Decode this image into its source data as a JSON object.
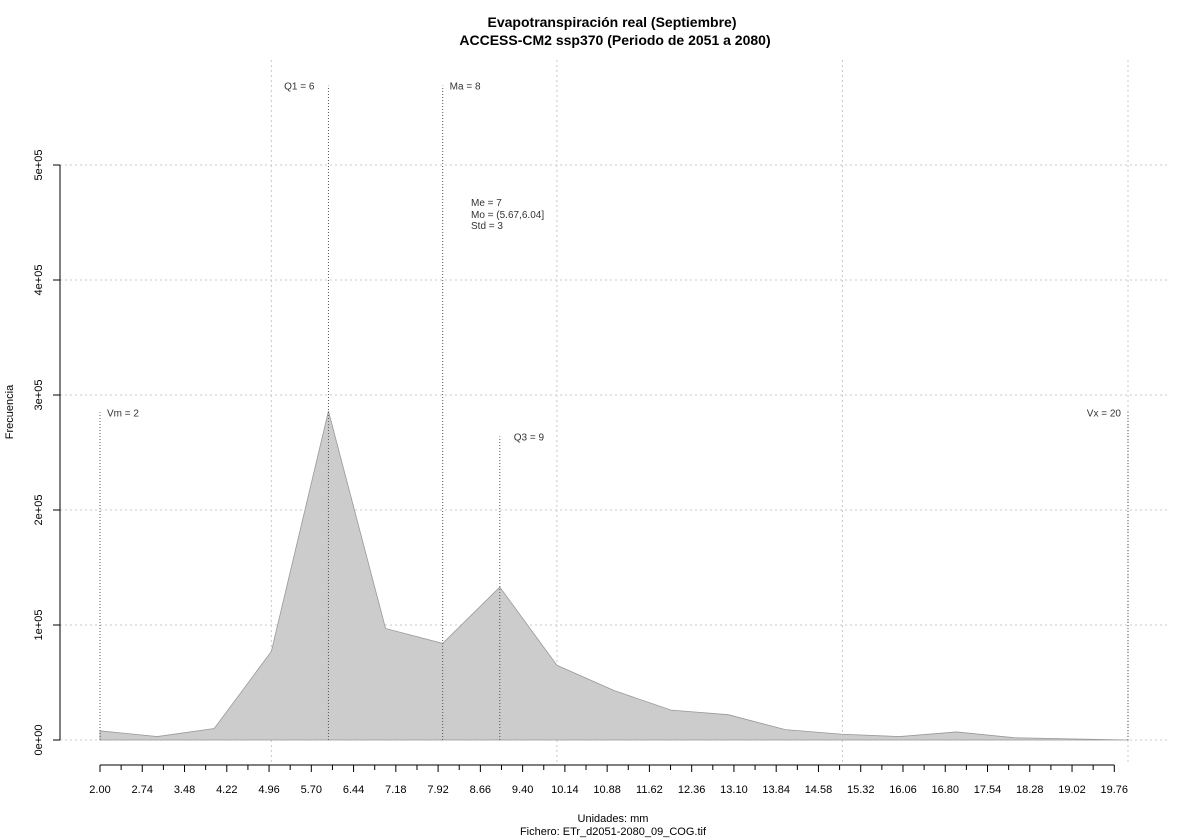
{
  "chart_data": {
    "type": "area",
    "title": "Evapotranspiración real (Septiembre)",
    "subtitle": "ACCESS-CM2 ssp370 (Periodo de 2051 a 2080)",
    "xlabel": "Unidades: mm",
    "file_label": "Fichero: ETr_d2051-2080_09_COG.tif",
    "ylabel": "Frecuencia",
    "xlim": [
      2,
      20
    ],
    "ylim": [
      0,
      570000
    ],
    "x_ticks": [
      "2.00",
      "2.74",
      "3.48",
      "4.22",
      "4.96",
      "5.70",
      "6.44",
      "7.18",
      "7.92",
      "8.66",
      "9.40",
      "10.14",
      "10.88",
      "11.62",
      "12.36",
      "13.10",
      "13.84",
      "14.58",
      "15.32",
      "16.06",
      "16.80",
      "17.54",
      "18.28",
      "19.02",
      "19.76"
    ],
    "y_ticks": [
      {
        "value": 0,
        "label": "0e+00"
      },
      {
        "value": 100000,
        "label": "1e+05"
      },
      {
        "value": 200000,
        "label": "2e+05"
      },
      {
        "value": 300000,
        "label": "3e+05"
      },
      {
        "value": 400000,
        "label": "4e+05"
      },
      {
        "value": 500000,
        "label": "5e+05"
      }
    ],
    "grid": true,
    "vertical_grid_x": [
      5,
      10,
      15,
      20
    ],
    "series": [
      {
        "x": [
          2,
          3,
          4,
          5,
          6,
          7,
          8,
          9,
          10,
          11,
          12,
          13,
          14,
          15,
          16,
          17,
          18,
          19,
          20
        ],
        "values": [
          8000,
          3000,
          10000,
          77000,
          286000,
          97000,
          84000,
          133000,
          65000,
          43000,
          26000,
          22000,
          9000,
          5000,
          3000,
          7000,
          2000,
          1000,
          0
        ],
        "fill": "#cccccc",
        "stroke": "#999999"
      }
    ],
    "stat_lines": [
      {
        "label": "Vm = 2",
        "x": 2,
        "top": 285000
      },
      {
        "label": "Q1 = 6",
        "x": 6,
        "top": 569000
      },
      {
        "label": "Ma = 8",
        "x": 8,
        "top": 569000
      },
      {
        "label": "Q3 = 9",
        "x": 9,
        "top": 264000
      },
      {
        "label": "Vx = 20",
        "x": 20,
        "top": 285000
      }
    ],
    "stats_text": [
      "Me = 7",
      "Mo = (5.67,6.04]",
      "Std = 3"
    ]
  }
}
